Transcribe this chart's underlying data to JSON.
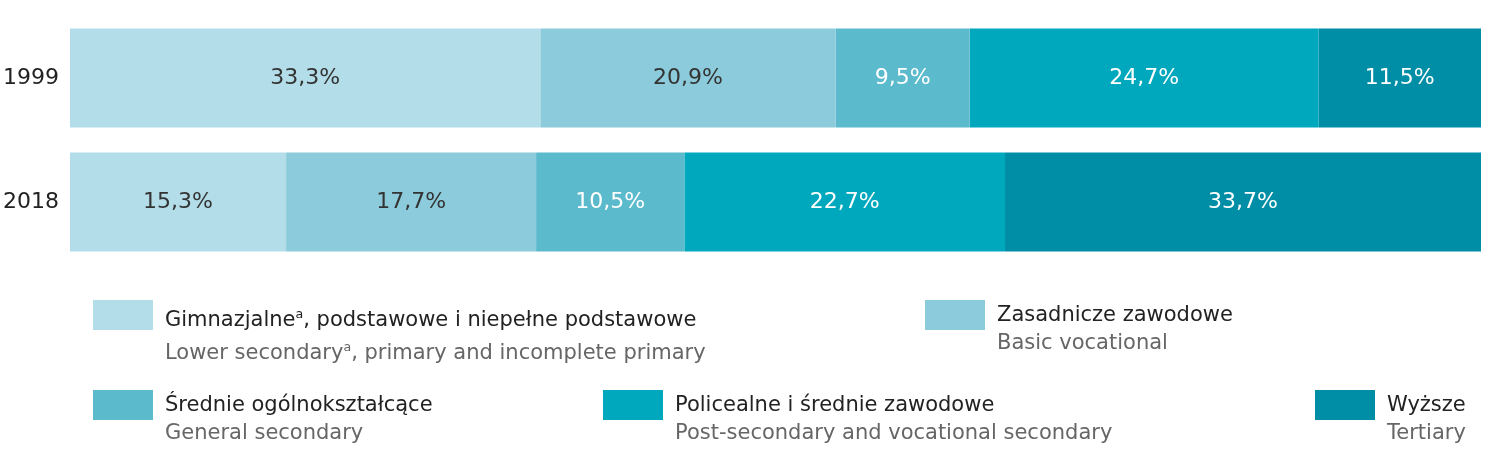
{
  "chart_data": {
    "type": "bar",
    "orientation": "horizontal",
    "stacked": true,
    "categories": [
      "1999",
      "2018"
    ],
    "tick_labels": "y",
    "grid": false,
    "legend": "bottom",
    "series": [
      {
        "name": "Gimnazjalne$^{a}$, podstawowe i niepełne podstawowe\nLower secondary$^{a}$, primary and incomplete primary",
        "color": "#b3dde9",
        "values": [
          33.3,
          15.3
        ],
        "value_labels": [
          "33,3%",
          "15,3%"
        ]
      },
      {
        "name": "Zasadnicze zawodowe\nBasic vocational",
        "color": "#8ccbdb",
        "values": [
          20.9,
          17.7
        ],
        "value_labels": [
          "20,9%",
          "17,7%"
        ]
      },
      {
        "name": "Średnie ogólnokształcące\nGeneral secondary",
        "color": "#5bbacc",
        "values": [
          9.5,
          10.5
        ],
        "value_labels": [
          "9,5%",
          "10,5%"
        ]
      },
      {
        "name": "Policealne i średnie zawodowe\nPost-secondary and vocational secondary",
        "color": "#00a8bd",
        "values": [
          24.7,
          22.7
        ],
        "value_labels": [
          "24,7%",
          "22,7%"
        ]
      },
      {
        "name": "Wyższe\nTertiary",
        "color": "#008ea6",
        "values": [
          11.5,
          33.7
        ],
        "value_labels": [
          "11,5%",
          "33,7%"
        ]
      }
    ]
  }
}
